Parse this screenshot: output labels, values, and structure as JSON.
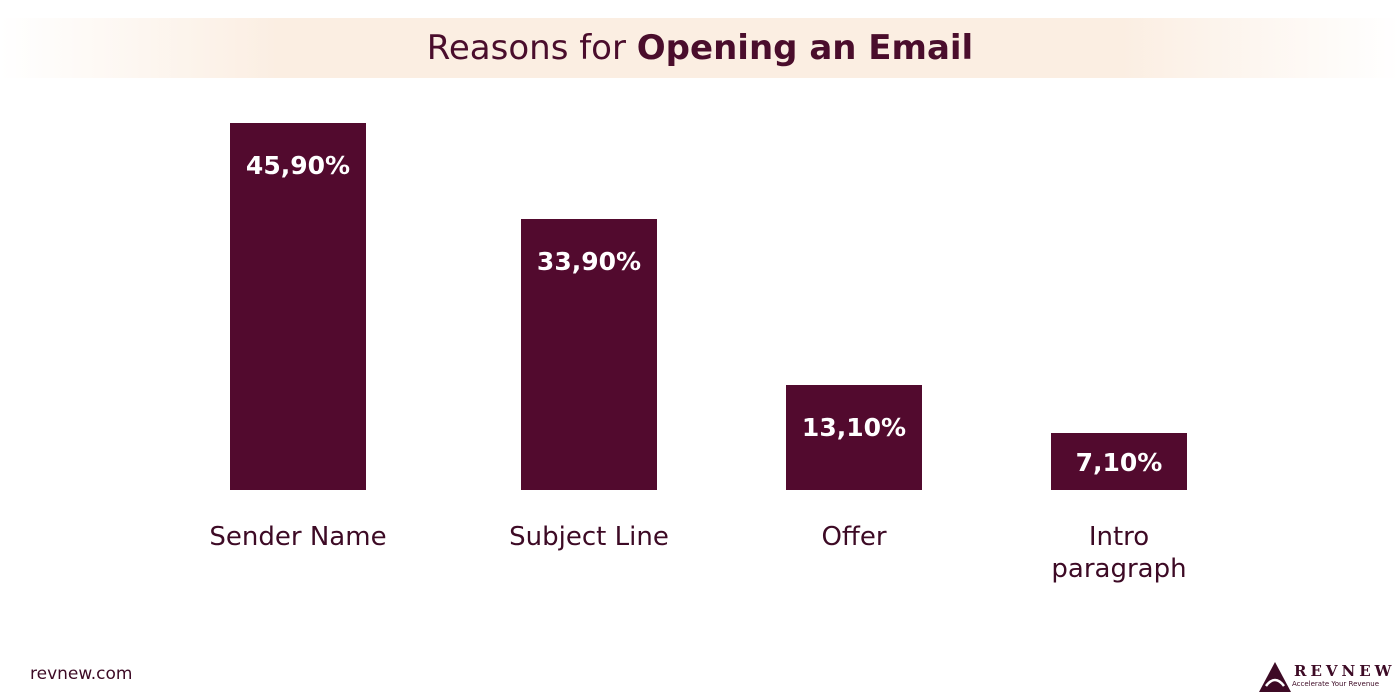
{
  "chart_data": {
    "type": "bar",
    "title": [
      "Reasons for",
      "Opening an Email"
    ],
    "categories": [
      "Sender Name",
      "Subject Line",
      "Offer",
      "Intro paragraph"
    ],
    "values": [
      45.9,
      33.9,
      13.1,
      7.1
    ],
    "value_labels": [
      "45,90%",
      "33,90%",
      "13,10%",
      "7,10%"
    ],
    "color": "#520a2e"
  },
  "footer": {
    "site": "revnew.com",
    "brand": "REVNEW",
    "tagline": "Accelerate Your Revenue"
  }
}
